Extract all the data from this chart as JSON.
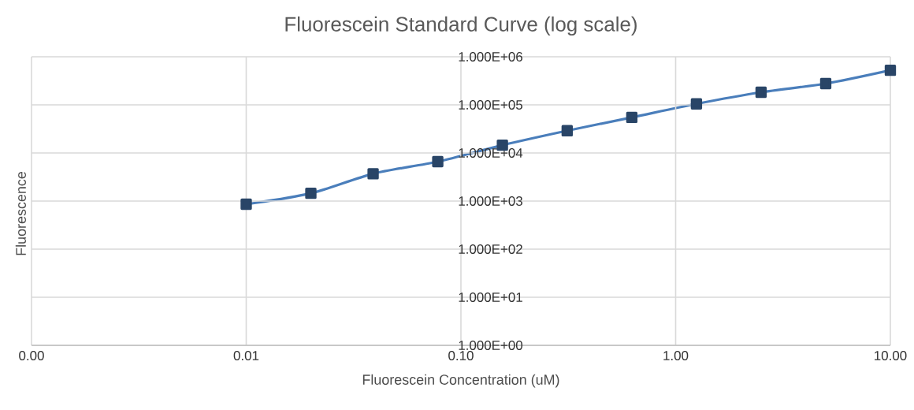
{
  "chart_data": {
    "type": "line",
    "title": "Fluorescein Standard Curve (log scale)",
    "xlabel": "Fluorescein Concentration (uM)",
    "ylabel": "Fluorescence",
    "x": [
      0.01,
      0.02,
      0.039,
      0.078,
      0.156,
      0.3125,
      0.625,
      1.25,
      2.5,
      5,
      10
    ],
    "series": [
      {
        "color": "#4a7ebb",
        "values": [
          860,
          1450,
          3700,
          6600,
          14500,
          29000,
          55000,
          105000,
          183000,
          277000,
          525000
        ]
      }
    ],
    "log": "xy",
    "xlim": [
      0.001,
      10
    ],
    "ylim": [
      1,
      1000000
    ],
    "xticks": [
      {
        "value": 0.001,
        "label": "0.00"
      },
      {
        "value": 0.01,
        "label": "0.01"
      },
      {
        "value": 0.1,
        "label": "0.10"
      },
      {
        "value": 1,
        "label": "1.00"
      },
      {
        "value": 10,
        "label": "10.00"
      }
    ],
    "yticks": [
      {
        "value": 1,
        "label": "1.000E+00"
      },
      {
        "value": 10,
        "label": "1.000E+01"
      },
      {
        "value": 100,
        "label": "1.000E+02"
      },
      {
        "value": 1000,
        "label": "1.000E+03"
      },
      {
        "value": 10000,
        "label": "1.000E+04"
      },
      {
        "value": 100000,
        "label": "1.000E+05"
      },
      {
        "value": 1000000,
        "label": "1.000E+06"
      }
    ],
    "grid": true,
    "marker": "square",
    "line_style": "solid"
  }
}
